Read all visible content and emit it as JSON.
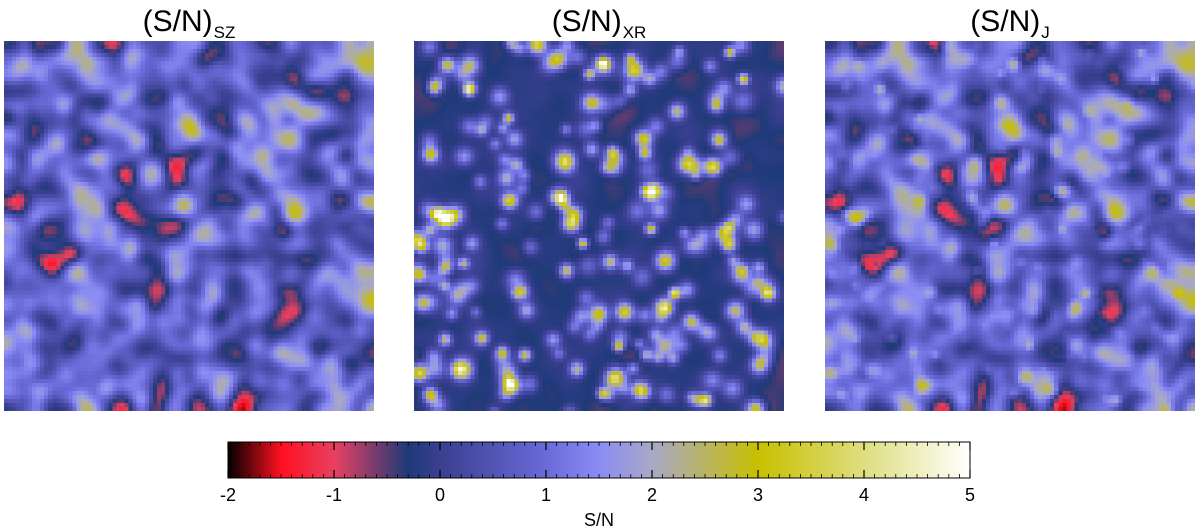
{
  "panels": [
    {
      "id": "sz",
      "title_main": "(S/N)",
      "title_sub": "SZ"
    },
    {
      "id": "xr",
      "title_main": "(S/N)",
      "title_sub": "XR"
    },
    {
      "id": "j",
      "title_main": "(S/N)",
      "title_sub": "J"
    }
  ],
  "chart_data": {
    "type": "heatmap",
    "description_unit": "S/N",
    "colorbar": {
      "label": "S/N",
      "range": [
        -2,
        5
      ],
      "ticks": [
        -2,
        -1,
        0,
        1,
        2,
        3,
        4,
        5
      ],
      "tick_labels": [
        "-2",
        "-1",
        "0",
        "1",
        "2",
        "3",
        "4",
        "5"
      ],
      "colormap_stops": [
        {
          "value": -2.0,
          "color": "#000000"
        },
        {
          "value": -1.5,
          "color": "#ff1020"
        },
        {
          "value": -1.0,
          "color": "#e84060"
        },
        {
          "value": -0.3,
          "color": "#1e3a78"
        },
        {
          "value": 0.0,
          "color": "#3a3f90"
        },
        {
          "value": 1.0,
          "color": "#6a6ad8"
        },
        {
          "value": 1.5,
          "color": "#8a8cf4"
        },
        {
          "value": 2.0,
          "color": "#a8a8c8"
        },
        {
          "value": 3.0,
          "color": "#c8c000"
        },
        {
          "value": 4.0,
          "color": "#dede80"
        },
        {
          "value": 5.0,
          "color": "#ffffff"
        }
      ]
    },
    "maps": [
      {
        "panel": "sz",
        "grid": 92,
        "seed": 11,
        "kind": "smooth"
      },
      {
        "panel": "xr",
        "grid": 92,
        "seed": 23,
        "kind": "points"
      },
      {
        "panel": "j",
        "grid": 92,
        "seed": 11,
        "kind": "joint"
      }
    ]
  }
}
